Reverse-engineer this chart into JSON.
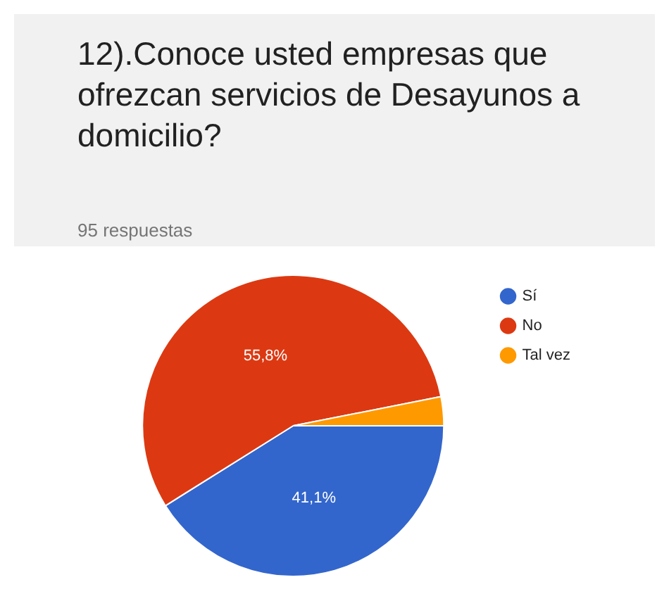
{
  "chart_data": {
    "type": "pie",
    "title": "12).Conoce usted empresas que ofrezcan servicios de Desayunos a domicilio?",
    "subtitle": "95 respuestas",
    "categories": [
      "Sí",
      "No",
      "Tal vez"
    ],
    "values": [
      41.1,
      55.8,
      3.1
    ],
    "colors": [
      "#3366cc",
      "#dc3912",
      "#ff9900"
    ],
    "value_labels": [
      "41,1%",
      "55,8%",
      null
    ],
    "legend": "top right"
  }
}
